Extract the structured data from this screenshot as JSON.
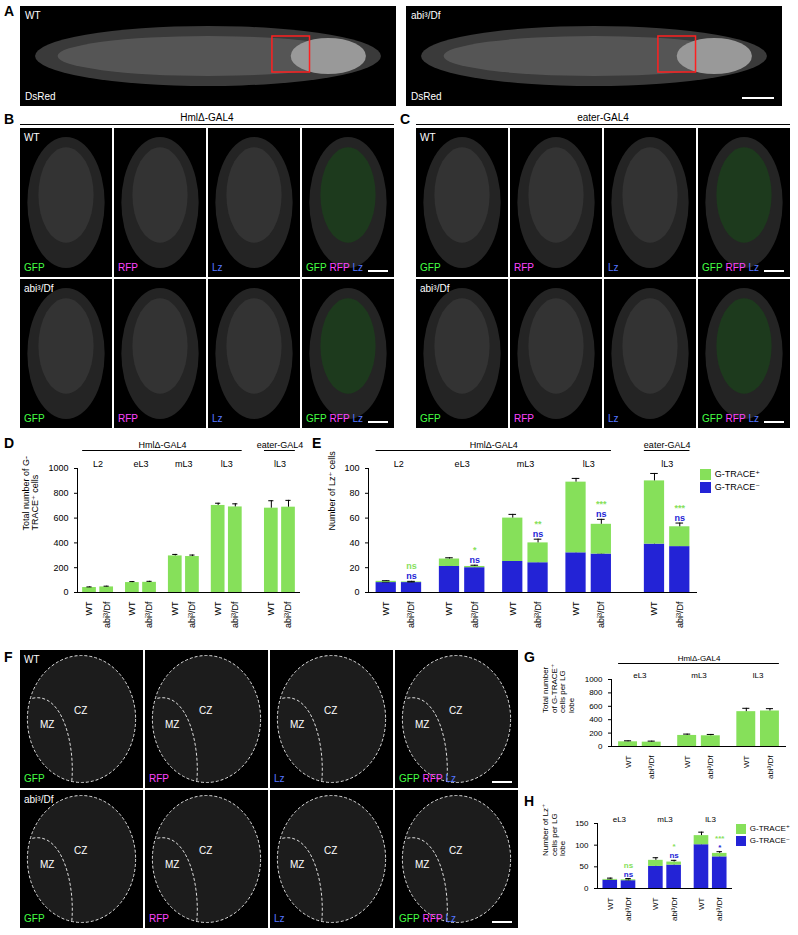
{
  "image_panels": [
    {
      "panel": "A",
      "tiles": [
        {
          "genotype": "WT",
          "channel": "DsRed"
        },
        {
          "genotype": "abi³/Df",
          "channel": "DsRed"
        }
      ]
    },
    {
      "panel": "B",
      "header": "HmlΔ-GAL4",
      "genotypes": [
        "WT",
        "abi³/Df"
      ],
      "channels": [
        {
          "name": "GFP",
          "color": "#44ff44"
        },
        {
          "name": "RFP",
          "color": "#ff44ff"
        },
        {
          "name": "Lz",
          "color": "#5577ff"
        }
      ]
    },
    {
      "panel": "C",
      "header": "eater-GAL4",
      "genotypes": [
        "WT",
        "abi³/Df"
      ],
      "channels": [
        {
          "name": "GFP",
          "color": "#44ff44"
        },
        {
          "name": "RFP",
          "color": "#ff44ff"
        },
        {
          "name": "Lz",
          "color": "#5577ff"
        }
      ]
    },
    {
      "panel": "F",
      "genotypes": [
        "WT",
        "abi³/Df"
      ],
      "channels": [
        {
          "name": "GFP",
          "color": "#44ff44"
        },
        {
          "name": "RFP",
          "color": "#ff44ff"
        },
        {
          "name": "Lz",
          "color": "#5577ff"
        }
      ],
      "regions": [
        "MZ",
        "CZ"
      ]
    }
  ],
  "chart_data": [
    {
      "panel": "D",
      "type": "bar",
      "ylabel": "Total number of G-TRACE⁺ cells",
      "categories": [
        "WT",
        "abi³/Df",
        "WT",
        "abi³/Df",
        "WT",
        "abi³/Df",
        "WT",
        "abi³/Df",
        "WT",
        "abi³/Df"
      ],
      "stages": [
        "L2",
        "eL3",
        "mL3",
        "lL3",
        "lL3"
      ],
      "stage_groups": [
        "HmlΔ-GAL4",
        "HmlΔ-GAL4",
        "HmlΔ-GAL4",
        "HmlΔ-GAL4",
        "eater-GAL4"
      ],
      "values": [
        40,
        45,
        80,
        82,
        295,
        290,
        702,
        690,
        680,
        688
      ],
      "errors": [
        5,
        6,
        8,
        8,
        12,
        12,
        18,
        25,
        60,
        55
      ],
      "color": "#86e05a",
      "ylim": [
        0,
        1000
      ],
      "yticks": [
        0,
        200,
        400,
        600,
        800,
        1000
      ]
    },
    {
      "panel": "E",
      "type": "bar",
      "stacked": true,
      "legend": "top-right",
      "ylabel": "Number of Lz⁺ cells",
      "categories": [
        "WT",
        "abi³/Df",
        "WT",
        "abi³/Df",
        "WT",
        "abi³/Df",
        "WT",
        "abi³/Df",
        "WT",
        "abi³/Df"
      ],
      "stages": [
        "L2",
        "eL3",
        "mL3",
        "lL3",
        "lL3"
      ],
      "stage_groups": [
        "HmlΔ-GAL4",
        "HmlΔ-GAL4",
        "HmlΔ-GAL4",
        "HmlΔ-GAL4",
        "eater-GAL4"
      ],
      "series": [
        {
          "name": "G-TRACE⁺",
          "color": "#86e05a",
          "values": [
            1,
            0.5,
            6,
            1,
            35,
            16,
            57,
            24,
            51,
            16
          ],
          "errors": [
            0.5,
            0.5,
            1,
            1,
            3,
            3,
            3,
            4,
            6,
            3
          ],
          "significance": [
            null,
            "ns",
            null,
            "*",
            null,
            "**",
            null,
            "***",
            null,
            "***"
          ]
        },
        {
          "name": "G-TRACE⁻",
          "color": "#2323d6",
          "values": [
            8,
            8,
            21,
            20,
            25,
            24,
            32,
            31,
            39,
            37
          ],
          "errors": [
            0.5,
            0.5,
            1,
            1,
            1,
            1,
            1.5,
            1,
            2,
            2
          ],
          "significance": [
            null,
            "ns",
            null,
            "ns",
            null,
            "ns",
            null,
            "ns",
            null,
            "ns"
          ]
        }
      ],
      "ylim": [
        0,
        100
      ],
      "yticks": [
        0,
        20,
        40,
        60,
        80,
        100
      ]
    },
    {
      "panel": "G",
      "type": "bar",
      "ylabel": "Total number of G-TRACE⁺ cells per LG lobe",
      "categories": [
        "WT",
        "abi³/Df",
        "WT",
        "abi³/Df",
        "WT",
        "abi³/Df"
      ],
      "stages": [
        "eL3",
        "mL3",
        "lL3"
      ],
      "stage_groups": [
        "HmlΔ-GAL4",
        "HmlΔ-GAL4",
        "HmlΔ-GAL4"
      ],
      "values": [
        70,
        65,
        165,
        160,
        520,
        530
      ],
      "errors": [
        15,
        15,
        20,
        20,
        50,
        35
      ],
      "color": "#86e05a",
      "ylim": [
        0,
        1000
      ],
      "yticks": [
        0,
        200,
        400,
        600,
        800,
        1000
      ]
    },
    {
      "panel": "H",
      "type": "bar",
      "stacked": true,
      "legend": "top-right",
      "ylabel": "Number of Lz⁺ cells per LG lobe",
      "categories": [
        "WT",
        "abi³/Df",
        "WT",
        "abi³/Df",
        "WT",
        "abi³/Df"
      ],
      "stages": [
        "eL3",
        "mL3",
        "lL3"
      ],
      "series": [
        {
          "name": "G-TRACE⁺",
          "color": "#86e05a",
          "values": [
            2,
            2,
            14,
            7,
            21,
            8
          ],
          "errors": [
            3,
            3,
            6,
            4,
            8,
            4
          ],
          "significance": [
            null,
            "ns",
            null,
            "*",
            null,
            "***"
          ]
        },
        {
          "name": "G-TRACE⁻",
          "color": "#2323d6",
          "values": [
            19,
            18,
            51,
            54,
            101,
            73
          ],
          "errors": [
            2,
            2,
            5,
            5,
            8,
            5
          ],
          "significance": [
            null,
            "ns",
            null,
            "ns",
            null,
            "*"
          ]
        }
      ],
      "ylim": [
        0,
        150
      ],
      "yticks": [
        0,
        50,
        100,
        150
      ]
    }
  ]
}
